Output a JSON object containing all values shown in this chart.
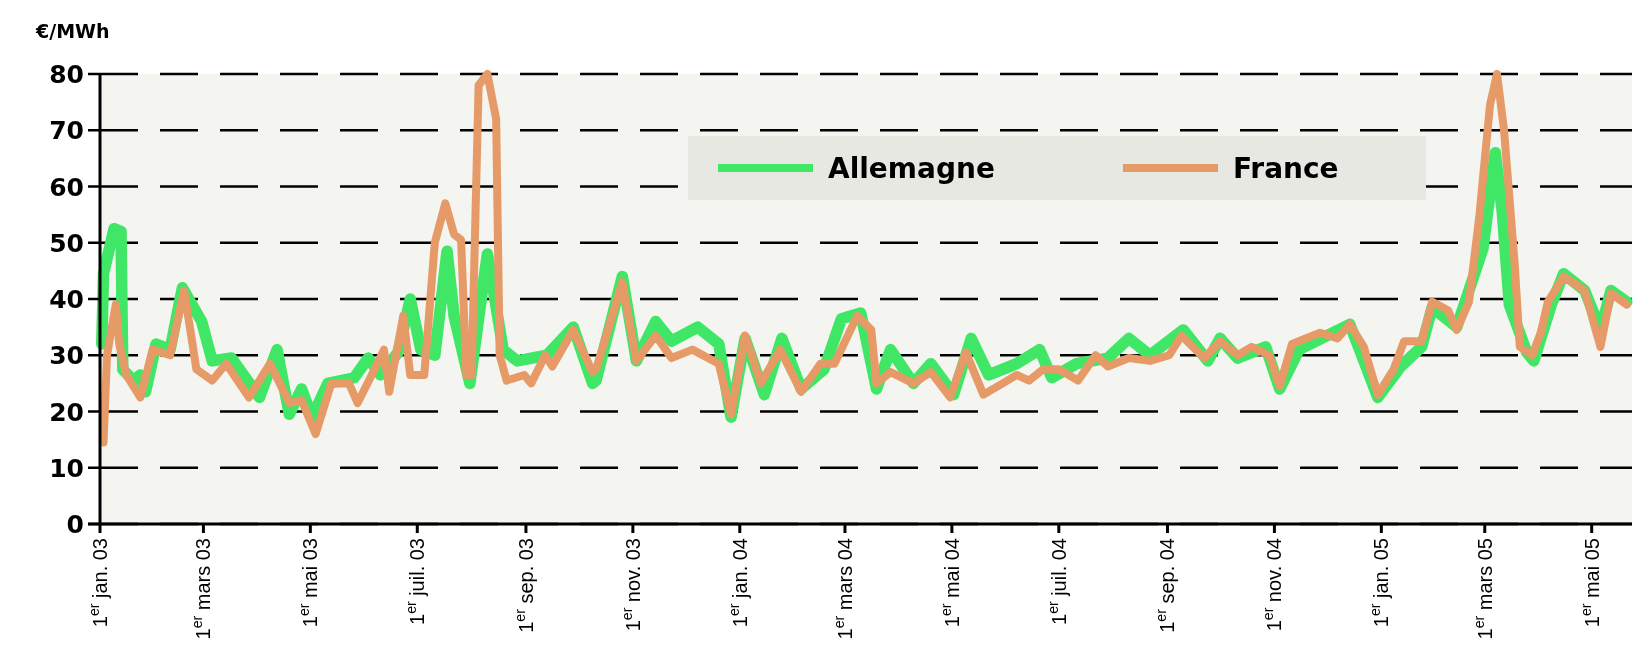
{
  "chart_data": {
    "type": "line",
    "ylabel": "€/MWh",
    "xlim": [
      "2003-01-01",
      "2005-05-24"
    ],
    "ylim": [
      0,
      80
    ],
    "yticks": [
      0,
      10,
      20,
      30,
      40,
      50,
      60,
      70,
      80
    ],
    "xticks": [
      {
        "value": "2003-01-01",
        "label": "1$^{er}$ jan. 03"
      },
      {
        "value": "2003-03-01",
        "label": "1$^{er}$ mars 03"
      },
      {
        "value": "2003-05-01",
        "label": "1$^{er}$ mai 03"
      },
      {
        "value": "2003-07-01",
        "label": "1$^{er}$ juil. 03"
      },
      {
        "value": "2003-09-01",
        "label": "1$^{er}$ sep. 03"
      },
      {
        "value": "2003-11-01",
        "label": "1$^{er}$ nov. 03"
      },
      {
        "value": "2004-01-01",
        "label": "1$^{er}$ jan. 04"
      },
      {
        "value": "2004-03-01",
        "label": "1$^{er}$ mars 04"
      },
      {
        "value": "2004-05-01",
        "label": "1$^{er}$ mai 04"
      },
      {
        "value": "2004-07-01",
        "label": "1$^{er}$ juil. 04"
      },
      {
        "value": "2004-09-01",
        "label": "1$^{er}$ sep. 04"
      },
      {
        "value": "2004-11-01",
        "label": "1$^{er}$ nov. 04"
      },
      {
        "value": "2005-01-01",
        "label": "1$^{er}$ jan. 05"
      },
      {
        "value": "2005-03-01",
        "label": "1$^{er}$ mars 05"
      },
      {
        "value": "2005-05-01",
        "label": "1$^{er}$ mai 05"
      }
    ],
    "grid": "y",
    "line_style": "solid",
    "legend": "top right",
    "series": [
      {
        "name": "Allemagne",
        "color": "#40e766",
        "x": [
          "2003-01-02",
          "2003-01-03",
          "2003-01-09",
          "2003-01-13",
          "2003-01-14",
          "2003-01-20",
          "2003-01-24",
          "2003-01-27",
          "2003-02-02",
          "2003-02-10",
          "2003-02-17",
          "2003-02-28",
          "2003-03-06",
          "2003-03-17",
          "2003-04-02",
          "2003-04-12",
          "2003-04-19",
          "2003-04-26",
          "2003-05-02",
          "2003-05-11",
          "2003-05-26",
          "2003-06-03",
          "2003-06-10",
          "2003-06-20",
          "2003-06-27",
          "2003-07-03",
          "2003-07-11",
          "2003-07-18",
          "2003-07-22",
          "2003-07-31",
          "2003-08-10",
          "2003-08-19",
          "2003-08-27",
          "2003-09-13",
          "2003-09-28",
          "2003-10-09",
          "2003-10-11",
          "2003-10-26",
          "2003-11-03",
          "2003-11-14",
          "2003-11-23",
          "2003-12-08",
          "2003-12-20",
          "2003-12-27",
          "2004-01-04",
          "2004-01-15",
          "2004-01-25",
          "2004-02-05",
          "2004-02-18",
          "2004-02-28",
          "2004-03-10",
          "2004-03-19",
          "2004-03-27",
          "2004-04-09",
          "2004-04-19",
          "2004-05-02",
          "2004-05-12",
          "2004-05-22",
          "2004-06-07",
          "2004-06-20",
          "2004-06-27",
          "2004-07-11",
          "2004-07-29",
          "2004-08-10",
          "2004-08-22",
          "2004-09-10",
          "2004-09-24",
          "2004-10-01",
          "2004-10-11",
          "2004-10-27",
          "2004-11-04",
          "2004-11-15",
          "2004-12-01",
          "2004-12-14",
          "2004-12-30",
          "2005-01-12",
          "2005-01-24",
          "2005-01-30",
          "2005-02-13",
          "2005-02-28",
          "2005-03-07",
          "2005-03-11",
          "2005-03-15",
          "2005-03-25",
          "2005-03-29",
          "2005-04-08",
          "2005-04-15",
          "2005-04-27",
          "2005-05-06",
          "2005-05-12",
          "2005-05-21"
        ],
        "values": [
          32,
          44.5,
          52.5,
          52,
          27.5,
          25.5,
          26.5,
          23.5,
          32,
          31,
          42,
          36,
          29,
          29.5,
          22.5,
          31,
          19.5,
          24,
          19,
          25,
          26,
          29.5,
          26.5,
          30.5,
          40,
          31,
          30,
          48.5,
          37,
          25,
          48,
          31,
          29,
          30,
          35,
          25,
          25.5,
          44,
          29,
          36,
          32.5,
          35,
          32,
          19,
          33,
          23,
          33,
          24,
          27.5,
          36.5,
          37.5,
          24,
          31,
          25,
          28.5,
          23,
          33,
          26.5,
          28.5,
          31,
          26,
          28.5,
          29.5,
          33,
          30,
          34.5,
          29,
          33,
          29.5,
          31.5,
          24,
          31,
          33.5,
          35.5,
          22.5,
          28,
          31.5,
          38.5,
          35,
          49,
          66,
          55.5,
          39,
          30.5,
          29,
          39,
          44.5,
          41.5,
          34.5,
          41.5,
          39.5
        ]
      },
      {
        "name": "France",
        "color": "#e59a67",
        "x": [
          "2003-01-03",
          "2003-01-05",
          "2003-01-10",
          "2003-01-12",
          "2003-01-16",
          "2003-01-24",
          "2003-01-31",
          "2003-02-10",
          "2003-02-18",
          "2003-02-25",
          "2003-03-06",
          "2003-03-14",
          "2003-03-27",
          "2003-04-08",
          "2003-04-19",
          "2003-04-26",
          "2003-05-04",
          "2003-05-13",
          "2003-05-23",
          "2003-05-28",
          "2003-06-05",
          "2003-06-12",
          "2003-06-15",
          "2003-06-23",
          "2003-06-27",
          "2003-07-05",
          "2003-07-11",
          "2003-07-17",
          "2003-07-22",
          "2003-07-26",
          "2003-07-29",
          "2003-08-01",
          "2003-08-05",
          "2003-08-10",
          "2003-08-15",
          "2003-08-17",
          "2003-08-21",
          "2003-08-31",
          "2003-09-04",
          "2003-09-12",
          "2003-09-16",
          "2003-09-28",
          "2003-10-09",
          "2003-10-11",
          "2003-10-26",
          "2003-11-03",
          "2003-11-14",
          "2003-11-23",
          "2003-12-05",
          "2003-12-20",
          "2003-12-27",
          "2004-01-04",
          "2004-01-13",
          "2004-01-24",
          "2004-02-05",
          "2004-02-16",
          "2004-02-24",
          "2004-03-08",
          "2004-03-16",
          "2004-03-19",
          "2004-03-27",
          "2004-04-09",
          "2004-04-19",
          "2004-04-30",
          "2004-05-09",
          "2004-05-19",
          "2004-05-30",
          "2004-06-07",
          "2004-06-14",
          "2004-06-22",
          "2004-07-01",
          "2004-07-12",
          "2004-07-22",
          "2004-07-29",
          "2004-08-10",
          "2004-08-22",
          "2004-09-02",
          "2004-09-09",
          "2004-09-22",
          "2004-10-01",
          "2004-10-11",
          "2004-10-19",
          "2004-10-29",
          "2004-11-04",
          "2004-11-11",
          "2004-11-27",
          "2004-12-07",
          "2004-12-14",
          "2004-12-22",
          "2004-12-30",
          "2005-01-08",
          "2005-01-14",
          "2005-01-24",
          "2005-01-30",
          "2005-02-08",
          "2005-02-13",
          "2005-02-20",
          "2005-02-26",
          "2005-03-04",
          "2005-03-08",
          "2005-03-12",
          "2005-03-18",
          "2005-03-21",
          "2005-03-28",
          "2005-04-02",
          "2005-04-06",
          "2005-04-15",
          "2005-04-27",
          "2005-05-06",
          "2005-05-12",
          "2005-05-21"
        ],
        "values": [
          14.5,
          30,
          39,
          32,
          26.5,
          22.5,
          31,
          30,
          41.5,
          27.5,
          25.5,
          28.5,
          22.5,
          28.5,
          21.5,
          22,
          16,
          25,
          25,
          21.5,
          26.5,
          31,
          23.5,
          37,
          26.5,
          26.5,
          50,
          57,
          51.5,
          50.5,
          26.5,
          26.5,
          78,
          80,
          72,
          30,
          25.5,
          26.5,
          25,
          30,
          28,
          34.5,
          27,
          27.5,
          43,
          29,
          33.5,
          29.5,
          31,
          28.5,
          19.5,
          33.5,
          25,
          31,
          23.5,
          28.5,
          28.5,
          37,
          34.5,
          25,
          27,
          25,
          27,
          22.5,
          30.5,
          23,
          25,
          26.5,
          25.5,
          27.5,
          27.5,
          25.5,
          30,
          28,
          29.5,
          29,
          30,
          33.5,
          29.5,
          32.5,
          30,
          31.5,
          30,
          24.5,
          32,
          34,
          33,
          35.5,
          31.5,
          23,
          27.5,
          32.5,
          32.5,
          39.5,
          38,
          34.5,
          39.5,
          55,
          74.5,
          80,
          70,
          46.5,
          31.5,
          30,
          34,
          39.5,
          44,
          41.5,
          31.5,
          41,
          39
        ]
      }
    ]
  }
}
